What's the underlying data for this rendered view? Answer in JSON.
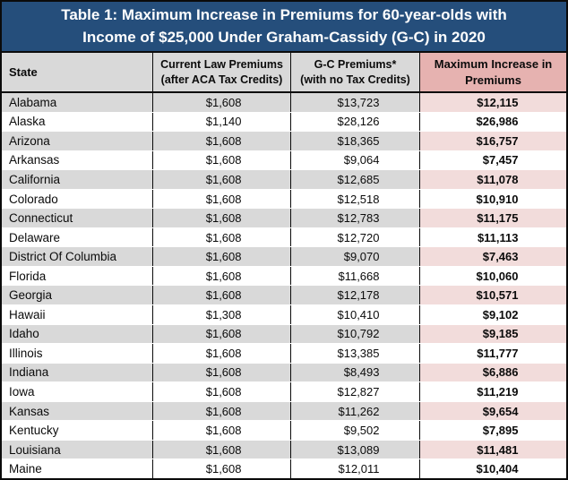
{
  "title": {
    "line1": "Table 1: Maximum Increase in Premiums for 60-year-olds with",
    "line2": "Income of $25,000 Under Graham-Cassidy (G-C) in 2020"
  },
  "header": {
    "cols": [
      {
        "line1": "State",
        "line2": ""
      },
      {
        "line1": "Current Law Premiums",
        "line2": "(after ACA Tax Credits)"
      },
      {
        "line1": "G-C Premiums*",
        "line2": "(with no Tax Credits)"
      },
      {
        "line1": "Maximum Increase in",
        "line2": "Premiums"
      }
    ]
  },
  "colors": {
    "title_bar_bg": "#254e7b",
    "title_text": "#ffffff",
    "header_gray_bg": "#d9d9d9",
    "header_pink_bg": "#e6b2b0",
    "row_shaded_bg": "#d9d9d9",
    "row_shaded_pink_cell_bg": "#f2dcdb",
    "row_plain_bg": "#ffffff",
    "border": "#0b0b0b"
  },
  "chart_data": {
    "type": "table",
    "title": "Table 1: Maximum Increase in Premiums for 60-year-olds with Income of $25,000 Under Graham-Cassidy (G-C) in 2020",
    "columns": [
      "State",
      "Current Law Premiums (after ACA Tax Credits)",
      "G-C Premiums* (with no Tax Credits)",
      "Maximum Increase in Premiums"
    ],
    "rows": [
      [
        "Alabama",
        "$1,608",
        "$13,723",
        "$12,115"
      ],
      [
        "Alaska",
        "$1,140",
        "$28,126",
        "$26,986"
      ],
      [
        "Arizona",
        "$1,608",
        "$18,365",
        "$16,757"
      ],
      [
        "Arkansas",
        "$1,608",
        "$9,064",
        "$7,457"
      ],
      [
        "California",
        "$1,608",
        "$12,685",
        "$11,078"
      ],
      [
        "Colorado",
        "$1,608",
        "$12,518",
        "$10,910"
      ],
      [
        "Connecticut",
        "$1,608",
        "$12,783",
        "$11,175"
      ],
      [
        "Delaware",
        "$1,608",
        "$12,720",
        "$11,113"
      ],
      [
        "District Of Columbia",
        "$1,608",
        "$9,070",
        "$7,463"
      ],
      [
        "Florida",
        "$1,608",
        "$11,668",
        "$10,060"
      ],
      [
        "Georgia",
        "$1,608",
        "$12,178",
        "$10,571"
      ],
      [
        "Hawaii",
        "$1,308",
        "$10,410",
        "$9,102"
      ],
      [
        "Idaho",
        "$1,608",
        "$10,792",
        "$9,185"
      ],
      [
        "Illinois",
        "$1,608",
        "$13,385",
        "$11,777"
      ],
      [
        "Indiana",
        "$1,608",
        "$8,493",
        "$6,886"
      ],
      [
        "Iowa",
        "$1,608",
        "$12,827",
        "$11,219"
      ],
      [
        "Kansas",
        "$1,608",
        "$11,262",
        "$9,654"
      ],
      [
        "Kentucky",
        "$1,608",
        "$9,502",
        "$7,895"
      ],
      [
        "Louisiana",
        "$1,608",
        "$13,089",
        "$11,481"
      ],
      [
        "Maine",
        "$1,608",
        "$12,011",
        "$10,404"
      ]
    ]
  }
}
